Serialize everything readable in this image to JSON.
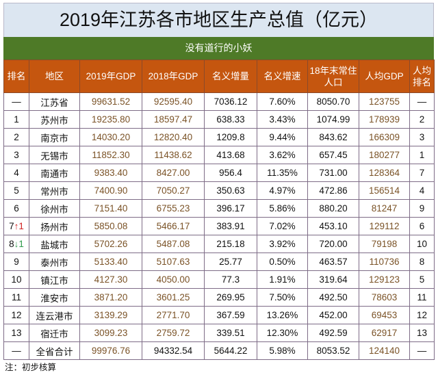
{
  "title": "2019年江苏各市地区生产总值（亿元）",
  "subtitle": "没有道行的小妖",
  "headers": [
    "排名",
    "地区",
    "2019年GDP",
    "2018年GDP",
    "名义增量",
    "名义增速",
    "18年末常住人口",
    "人均GDP",
    "人均排名"
  ],
  "rows": [
    {
      "rank": "—",
      "arrow": "",
      "arrow_dir": "",
      "region": "江苏省",
      "gdp2019": "99631.52",
      "gdp2018": "92595.40",
      "inc": "7036.12",
      "rate": "7.60%",
      "pop": "8050.70",
      "per": "123755",
      "per_rank": "—"
    },
    {
      "rank": "1",
      "arrow": "",
      "arrow_dir": "",
      "region": "苏州市",
      "gdp2019": "19235.80",
      "gdp2018": "18597.47",
      "inc": "638.33",
      "rate": "3.43%",
      "pop": "1074.99",
      "per": "178939",
      "per_rank": "2"
    },
    {
      "rank": "2",
      "arrow": "",
      "arrow_dir": "",
      "region": "南京市",
      "gdp2019": "14030.20",
      "gdp2018": "12820.40",
      "inc": "1209.8",
      "rate": "9.44%",
      "pop": "843.62",
      "per": "166309",
      "per_rank": "3"
    },
    {
      "rank": "3",
      "arrow": "",
      "arrow_dir": "",
      "region": "无锡市",
      "gdp2019": "11852.30",
      "gdp2018": "11438.62",
      "inc": "413.68",
      "rate": "3.62%",
      "pop": "657.45",
      "per": "180277",
      "per_rank": "1"
    },
    {
      "rank": "4",
      "arrow": "",
      "arrow_dir": "",
      "region": "南通市",
      "gdp2019": "9383.40",
      "gdp2018": "8427.00",
      "inc": "956.4",
      "rate": "11.35%",
      "pop": "731.00",
      "per": "128364",
      "per_rank": "7"
    },
    {
      "rank": "5",
      "arrow": "",
      "arrow_dir": "",
      "region": "常州市",
      "gdp2019": "7400.90",
      "gdp2018": "7050.27",
      "inc": "350.63",
      "rate": "4.97%",
      "pop": "472.86",
      "per": "156514",
      "per_rank": "4"
    },
    {
      "rank": "6",
      "arrow": "",
      "arrow_dir": "",
      "region": "徐州市",
      "gdp2019": "7151.40",
      "gdp2018": "6755.23",
      "inc": "396.17",
      "rate": "5.86%",
      "pop": "880.20",
      "per": "81247",
      "per_rank": "9"
    },
    {
      "rank": "7",
      "arrow": "↑1",
      "arrow_dir": "up",
      "region": "扬州市",
      "gdp2019": "5850.08",
      "gdp2018": "5466.17",
      "inc": "383.91",
      "rate": "7.02%",
      "pop": "453.10",
      "per": "129112",
      "per_rank": "6"
    },
    {
      "rank": "8",
      "arrow": "↓1",
      "arrow_dir": "down",
      "region": "盐城市",
      "gdp2019": "5702.26",
      "gdp2018": "5487.08",
      "inc": "215.18",
      "rate": "3.92%",
      "pop": "720.00",
      "per": "79198",
      "per_rank": "10"
    },
    {
      "rank": "9",
      "arrow": "",
      "arrow_dir": "",
      "region": "泰州市",
      "gdp2019": "5133.40",
      "gdp2018": "5107.63",
      "inc": "25.77",
      "rate": "0.50%",
      "pop": "463.57",
      "per": "110736",
      "per_rank": "8"
    },
    {
      "rank": "10",
      "arrow": "",
      "arrow_dir": "",
      "region": "镇江市",
      "gdp2019": "4127.30",
      "gdp2018": "4050.00",
      "inc": "77.3",
      "rate": "1.91%",
      "pop": "319.64",
      "per": "129123",
      "per_rank": "5"
    },
    {
      "rank": "11",
      "arrow": "",
      "arrow_dir": "",
      "region": "淮安市",
      "gdp2019": "3871.20",
      "gdp2018": "3601.25",
      "inc": "269.95",
      "rate": "7.50%",
      "pop": "492.50",
      "per": "78603",
      "per_rank": "11"
    },
    {
      "rank": "12",
      "arrow": "",
      "arrow_dir": "",
      "region": "连云港市",
      "gdp2019": "3139.29",
      "gdp2018": "2771.70",
      "inc": "367.59",
      "rate": "13.26%",
      "pop": "452.00",
      "per": "69453",
      "per_rank": "12"
    },
    {
      "rank": "13",
      "arrow": "",
      "arrow_dir": "",
      "region": "宿迁市",
      "gdp2019": "3099.23",
      "gdp2018": "2759.72",
      "inc": "339.51",
      "rate": "12.30%",
      "pop": "492.59",
      "per": "62917",
      "per_rank": "13"
    },
    {
      "rank": "—",
      "arrow": "",
      "arrow_dir": "",
      "region": "全省合计",
      "gdp2019": "99976.76",
      "gdp2018": "94332.54",
      "inc": "5644.22",
      "rate": "5.98%",
      "pop": "8053.52",
      "per": "124140",
      "per_rank": "—"
    }
  ],
  "note": "注：初步核算",
  "colors": {
    "title_bg": "#dce6f1",
    "subtitle_bg": "#4e7a27",
    "header_bg": "#c5560f",
    "value_brown": "#7a5226",
    "up": "#d02020",
    "down": "#2e9a4a"
  }
}
